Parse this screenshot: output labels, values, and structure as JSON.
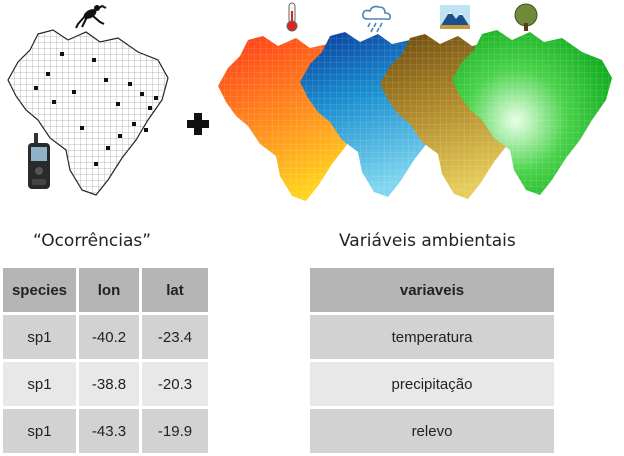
{
  "occurrences": {
    "caption": "“Ocorrências”",
    "headers": [
      "species",
      "lon",
      "lat"
    ],
    "rows": [
      [
        "sp1",
        "-40.2",
        "-23.4"
      ],
      [
        "sp1",
        "-38.8",
        "-20.3"
      ],
      [
        "sp1",
        "-43.3",
        "-19.9"
      ]
    ]
  },
  "environment": {
    "caption": "Variáveis ambientais",
    "header": "variaveis",
    "rows": [
      "temperatura",
      "precipitação",
      "relevo"
    ]
  },
  "icons": [
    "frog-icon",
    "gps-device-icon",
    "plus-icon",
    "thermometer-icon",
    "rain-cloud-icon",
    "mountain-icon",
    "tree-icon"
  ],
  "colors": {
    "temperature_map": [
      "#ff3a1a",
      "#ff8a1e",
      "#ffd21e"
    ],
    "precipitation_map": [
      "#0a3a9a",
      "#1a8fd0",
      "#7fd6ee"
    ],
    "relief_map": [
      "#6a4a10",
      "#b08a2a",
      "#e6cc5a"
    ],
    "vegetation_map": [
      "#0aa61a",
      "#4ad24a",
      "#e8ffe8"
    ]
  }
}
